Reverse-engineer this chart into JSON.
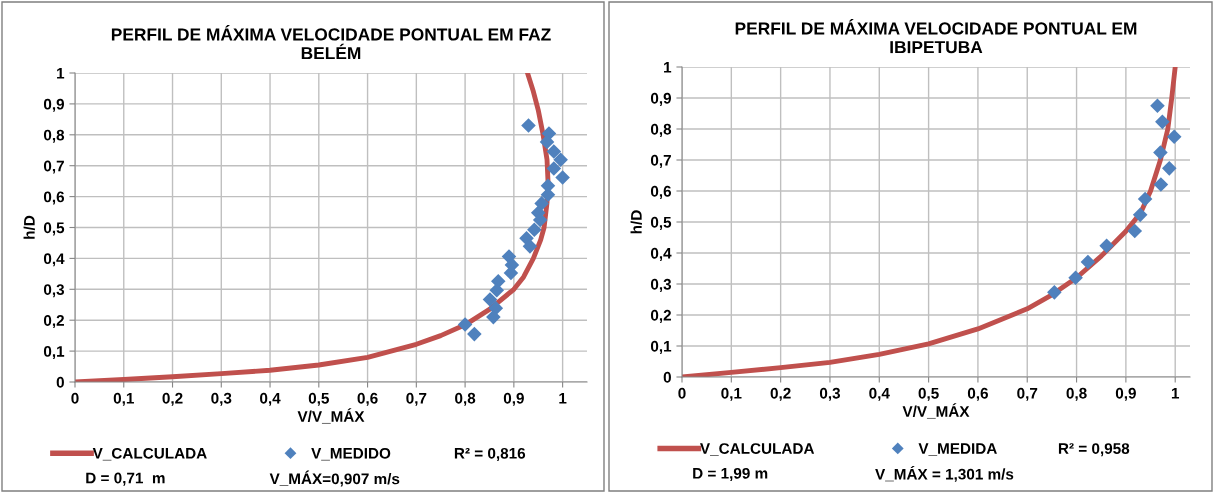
{
  "chart_data": [
    {
      "type": "scatter",
      "title": "PERFIL DE MÁXIMA VELOCIDADE PONTUAL EM FAZ\nBELÉM",
      "xlabel": "V/V_MÁX",
      "ylabel": "h/D",
      "xlim": [
        0,
        1.05
      ],
      "ylim": [
        0,
        1
      ],
      "xticks": [
        0,
        {
          "value": 0.1,
          "label": "0,1"
        },
        {
          "value": 0.2,
          "label": "0,2"
        },
        {
          "value": 0.3,
          "label": "0,3"
        },
        {
          "value": 0.4,
          "label": "0,4"
        },
        {
          "value": 0.5,
          "label": "0,5"
        },
        {
          "value": 0.6,
          "label": "0,6"
        },
        {
          "value": 0.7,
          "label": "0,7"
        },
        {
          "value": 0.8,
          "label": "0,8"
        },
        {
          "value": 0.9,
          "label": "0,9"
        },
        1
      ],
      "yticks": [
        0,
        {
          "value": 0.1,
          "label": "0,1"
        },
        {
          "value": 0.2,
          "label": "0,2"
        },
        {
          "value": 0.3,
          "label": "0,3"
        },
        {
          "value": 0.4,
          "label": "0,4"
        },
        {
          "value": 0.5,
          "label": "0,5"
        },
        {
          "value": 0.6,
          "label": "0,6"
        },
        {
          "value": 0.7,
          "label": "0,7"
        },
        {
          "value": 0.8,
          "label": "0,8"
        },
        {
          "value": 0.9,
          "label": "0,9"
        },
        1
      ],
      "grid": true,
      "legend": "bottom",
      "series": [
        {
          "name": "V_CALCULADA",
          "type": "line",
          "color": "#c0504d",
          "marker": "none",
          "line_style": "solid",
          "x": [
            0,
            0.1,
            0.2,
            0.3,
            0.4,
            0.5,
            0.6,
            0.7,
            0.75,
            0.8,
            0.85,
            0.9,
            0.92,
            0.94,
            0.955,
            0.962,
            0.968,
            0.97,
            0.968,
            0.96,
            0.95,
            0.94,
            0.928
          ],
          "values": [
            0,
            0.008,
            0.017,
            0.027,
            0.038,
            0.055,
            0.08,
            0.122,
            0.15,
            0.185,
            0.235,
            0.3,
            0.34,
            0.4,
            0.46,
            0.5,
            0.58,
            0.65,
            0.72,
            0.8,
            0.88,
            0.94,
            1.0
          ]
        },
        {
          "name": "V_MEDIDO",
          "type": "scatter",
          "color": "#4f81bd",
          "marker": "diamond",
          "x": [
            0.93,
            0.972,
            0.968,
            0.982,
            0.996,
            0.982,
            1.0,
            0.97,
            0.97,
            0.957,
            0.95,
            0.954,
            0.942,
            0.926,
            0.933,
            0.89,
            0.896,
            0.894,
            0.868,
            0.865,
            0.851,
            0.863,
            0.858,
            0.8,
            0.819
          ],
          "values": [
            0.83,
            0.804,
            0.777,
            0.746,
            0.719,
            0.691,
            0.662,
            0.635,
            0.606,
            0.578,
            0.548,
            0.524,
            0.493,
            0.465,
            0.439,
            0.406,
            0.379,
            0.353,
            0.326,
            0.297,
            0.267,
            0.239,
            0.21,
            0.186,
            0.155
          ]
        }
      ],
      "annotations": [
        "R² = 0,816",
        "D = 0,71  m",
        "V_MÁX=0,907 m/s"
      ]
    },
    {
      "type": "scatter",
      "title": "PERFIL DE MÁXIMA VELOCIDADE PONTUAL EM\nIBIPETUBA",
      "xlabel": "V/V_MÁX",
      "ylabel": "h/D",
      "xlim": [
        0,
        1.03
      ],
      "ylim": [
        0,
        1
      ],
      "xticks": [
        0,
        {
          "value": 0.1,
          "label": "0,1"
        },
        {
          "value": 0.2,
          "label": "0,2"
        },
        {
          "value": 0.3,
          "label": "0,3"
        },
        {
          "value": 0.4,
          "label": "0,4"
        },
        {
          "value": 0.5,
          "label": "0,5"
        },
        {
          "value": 0.6,
          "label": "0,6"
        },
        {
          "value": 0.7,
          "label": "0,7"
        },
        {
          "value": 0.8,
          "label": "0,8"
        },
        {
          "value": 0.9,
          "label": "0,9"
        },
        1
      ],
      "yticks": [
        0,
        {
          "value": 0.1,
          "label": "0,1"
        },
        {
          "value": 0.2,
          "label": "0,2"
        },
        {
          "value": 0.3,
          "label": "0,3"
        },
        {
          "value": 0.4,
          "label": "0,4"
        },
        {
          "value": 0.5,
          "label": "0,5"
        },
        {
          "value": 0.6,
          "label": "0,6"
        },
        {
          "value": 0.7,
          "label": "0,7"
        },
        {
          "value": 0.8,
          "label": "0,8"
        },
        {
          "value": 0.9,
          "label": "0,9"
        },
        1
      ],
      "grid": true,
      "legend": "bottom",
      "series": [
        {
          "name": "V_CALCULADA",
          "type": "line",
          "color": "#c0504d",
          "marker": "none",
          "line_style": "solid",
          "x": [
            0,
            0.1,
            0.2,
            0.3,
            0.4,
            0.5,
            0.6,
            0.7,
            0.75,
            0.8,
            0.85,
            0.9,
            0.93,
            0.95,
            0.97,
            0.985,
            0.993,
            1.0
          ],
          "values": [
            0,
            0.015,
            0.03,
            0.047,
            0.073,
            0.107,
            0.155,
            0.22,
            0.265,
            0.32,
            0.39,
            0.47,
            0.53,
            0.6,
            0.7,
            0.8,
            0.9,
            1.0
          ]
        },
        {
          "name": "V_MEDIDA",
          "type": "scatter",
          "color": "#4f81bd",
          "marker": "diamond",
          "x": [
            0.964,
            0.974,
            0.998,
            0.97,
            0.988,
            0.971,
            0.939,
            0.929,
            0.918,
            0.861,
            0.823,
            0.798,
            0.755
          ],
          "values": [
            0.875,
            0.823,
            0.775,
            0.724,
            0.673,
            0.621,
            0.574,
            0.523,
            0.471,
            0.423,
            0.371,
            0.32,
            0.273
          ]
        }
      ],
      "annotations": [
        "R² = 0,958",
        "D = 1,99 m",
        "V_MÁX = 1,301 m/s"
      ]
    }
  ]
}
